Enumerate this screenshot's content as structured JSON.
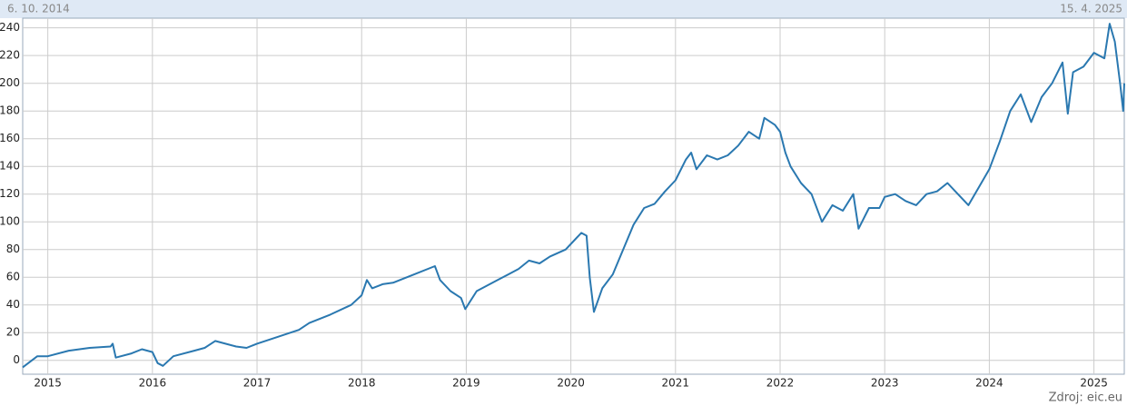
{
  "header": {
    "start_label": "6. 10. 2014",
    "end_label": "15. 4. 2025"
  },
  "footer": {
    "source": "Zdroj: eic.eu"
  },
  "chart_data": {
    "type": "line",
    "x": [
      2014.76,
      2014.9,
      2015.0,
      2015.2,
      2015.4,
      2015.6,
      2015.62,
      2015.65,
      2015.8,
      2015.9,
      2016.0,
      2016.05,
      2016.1,
      2016.2,
      2016.4,
      2016.5,
      2016.6,
      2016.8,
      2016.9,
      2017.0,
      2017.2,
      2017.4,
      2017.5,
      2017.7,
      2017.9,
      2018.0,
      2018.05,
      2018.1,
      2018.2,
      2018.3,
      2018.5,
      2018.7,
      2018.75,
      2018.85,
      2018.95,
      2018.99,
      2019.1,
      2019.3,
      2019.4,
      2019.5,
      2019.6,
      2019.7,
      2019.8,
      2019.95,
      2020.1,
      2020.15,
      2020.18,
      2020.22,
      2020.3,
      2020.4,
      2020.5,
      2020.6,
      2020.7,
      2020.8,
      2020.9,
      2021.0,
      2021.1,
      2021.15,
      2021.2,
      2021.3,
      2021.4,
      2021.5,
      2021.6,
      2021.7,
      2021.8,
      2021.85,
      2021.95,
      2022.0,
      2022.05,
      2022.1,
      2022.2,
      2022.3,
      2022.4,
      2022.5,
      2022.6,
      2022.7,
      2022.75,
      2022.85,
      2022.95,
      2023.0,
      2023.1,
      2023.2,
      2023.3,
      2023.4,
      2023.5,
      2023.6,
      2023.7,
      2023.8,
      2023.9,
      2024.0,
      2024.1,
      2024.2,
      2024.3,
      2024.4,
      2024.5,
      2024.6,
      2024.7,
      2024.75,
      2024.8,
      2024.9,
      2025.0,
      2025.1,
      2025.15,
      2025.2,
      2025.25,
      2025.28,
      2025.29
    ],
    "series": [
      {
        "color": "#2a78b0",
        "values": [
          -5,
          3,
          3,
          7,
          9,
          10,
          12,
          2,
          5,
          8,
          6,
          -2,
          -4,
          3,
          7,
          9,
          14,
          10,
          9,
          12,
          17,
          22,
          27,
          33,
          40,
          47,
          58,
          52,
          55,
          56,
          62,
          68,
          58,
          50,
          45,
          37,
          50,
          58,
          62,
          66,
          72,
          70,
          75,
          80,
          92,
          90,
          60,
          35,
          52,
          62,
          80,
          98,
          110,
          113,
          122,
          130,
          145,
          150,
          138,
          148,
          145,
          148,
          155,
          165,
          160,
          175,
          170,
          165,
          150,
          140,
          128,
          120,
          100,
          112,
          108,
          120,
          95,
          110,
          110,
          118,
          120,
          115,
          112,
          120,
          122,
          128,
          120,
          112,
          125,
          138,
          158,
          180,
          192,
          172,
          190,
          200,
          215,
          178,
          208,
          212,
          222,
          218,
          243,
          230,
          200,
          180,
          200
        ]
      }
    ],
    "xlim": [
      2014.76,
      2025.29
    ],
    "xticks": [
      2015,
      2016,
      2017,
      2018,
      2019,
      2020,
      2021,
      2022,
      2023,
      2024,
      2025
    ],
    "ylim": [
      -10,
      247
    ],
    "yticks": [
      0,
      20,
      40,
      60,
      80,
      100,
      120,
      140,
      160,
      180,
      200,
      220,
      240
    ],
    "grid": true
  }
}
